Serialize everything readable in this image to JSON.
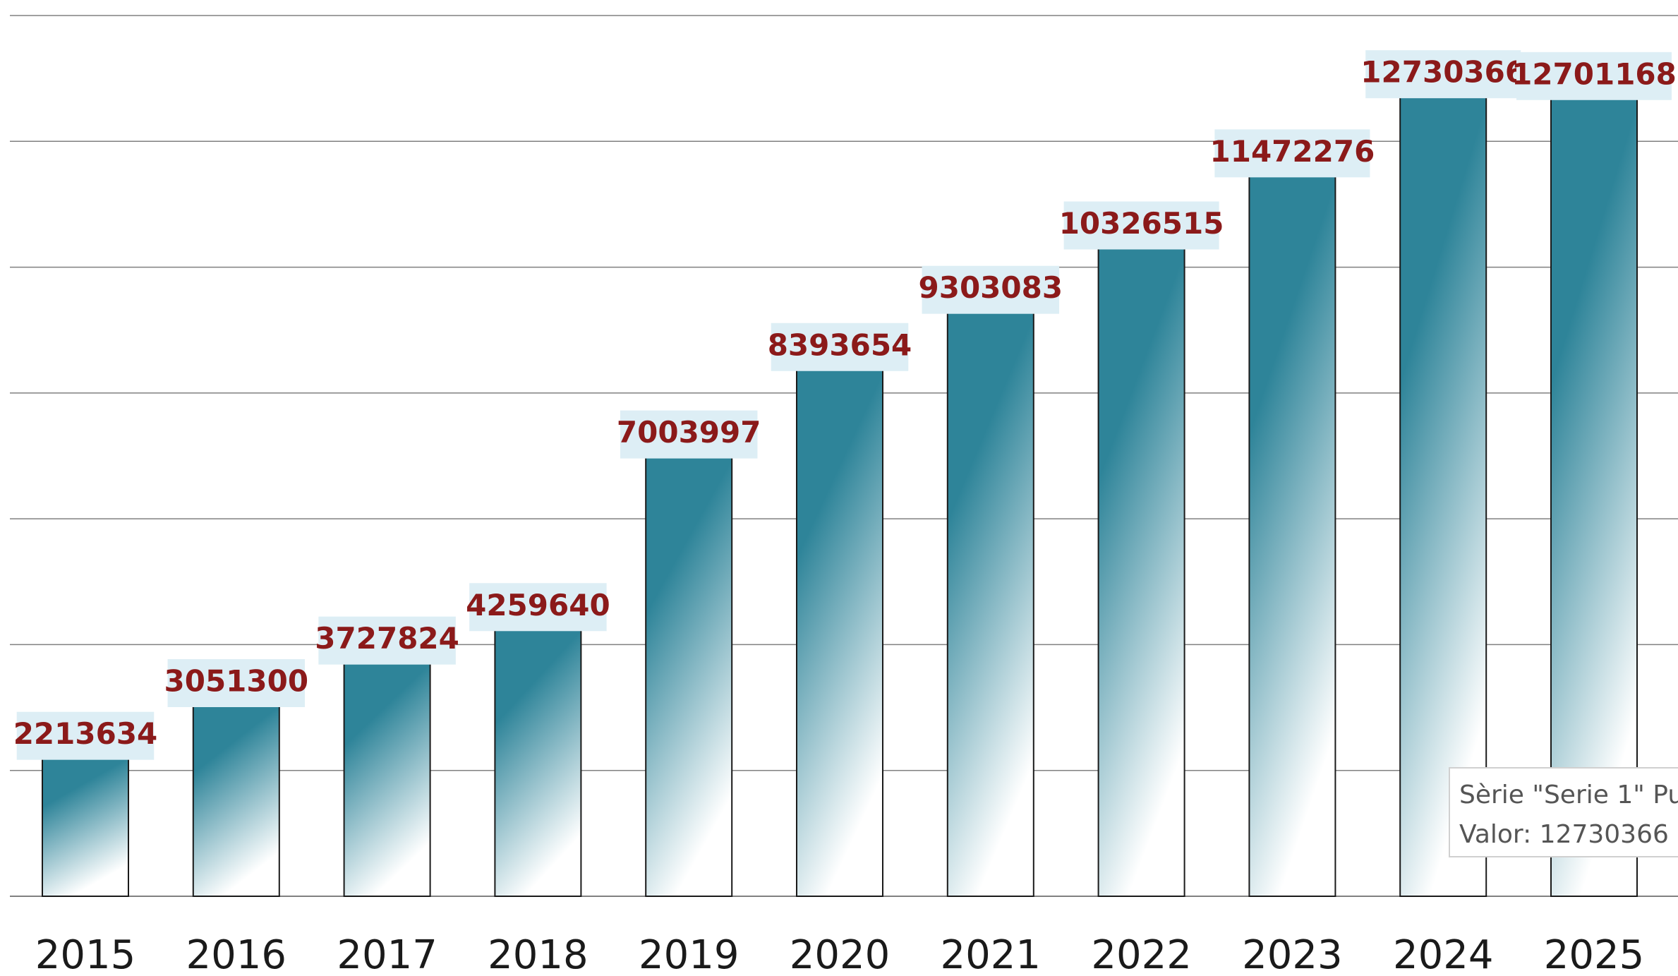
{
  "chart_data": {
    "type": "bar",
    "categories": [
      "2015",
      "2016",
      "2017",
      "2018",
      "2019",
      "2020",
      "2021",
      "2022",
      "2023",
      "2024",
      "2025"
    ],
    "series": [
      {
        "values": [
          2213634,
          3051300,
          3727824,
          4259640,
          7003997,
          8393654,
          9303083,
          10326515,
          11472276,
          12730366,
          12701168
        ]
      }
    ],
    "data_labels": [
      "2213634",
      "3051300",
      "3727824",
      "4259640",
      "7003997",
      "8393654",
      "9303083",
      "10326515",
      "11472276",
      "12730366",
      "12701168"
    ],
    "ylim": [
      0,
      14000000
    ],
    "y_gridline_step": 2000000,
    "grid": true,
    "legend": "none",
    "colors": {
      "bar_top": "#2e8499",
      "bar_bottom": "#ffffff",
      "bar_border": "#1a1a1a",
      "label_text": "#8b1a1a",
      "label_bg": "#ddeef5",
      "gridline": "#808080"
    },
    "tooltip": {
      "line1": "Sèrie \"Serie 1\" Pu",
      "line2": "Valor: 12730366"
    }
  }
}
